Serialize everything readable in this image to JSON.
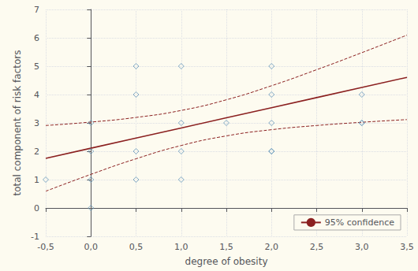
{
  "chart_data": {
    "type": "scatter",
    "xlabel": "degree of obesity",
    "ylabel": "total component of risk factors",
    "xlim": [
      -0.5,
      3.5
    ],
    "ylim": [
      -1,
      7
    ],
    "xticks": [
      {
        "value": -0.5,
        "label": "-0,5"
      },
      {
        "value": 0.0,
        "label": "0,0"
      },
      {
        "value": 0.5,
        "label": "0,5"
      },
      {
        "value": 1.0,
        "label": "1,0"
      },
      {
        "value": 1.5,
        "label": "1,5"
      },
      {
        "value": 2.0,
        "label": "2,0"
      },
      {
        "value": 2.5,
        "label": "2,5"
      },
      {
        "value": 3.0,
        "label": "3,0"
      },
      {
        "value": 3.5,
        "label": "3,5"
      }
    ],
    "yticks": [
      -1,
      0,
      1,
      2,
      3,
      4,
      5,
      6,
      7
    ],
    "grid": true,
    "legend": "lower right",
    "series": [
      {
        "type": "line",
        "color": "#8B2020",
        "line_style": "dashed",
        "x": [
          -0.5,
          0.0,
          0.5,
          1.0,
          1.5,
          2.0,
          2.5,
          3.0,
          3.5
        ],
        "values": [
          2.909,
          3.029,
          3.193,
          3.439,
          3.815,
          4.31,
          4.876,
          5.476,
          6.095
        ]
      },
      {
        "type": "line",
        "color": "#8B2020",
        "line_style": "dashed",
        "x": [
          -0.5,
          0.0,
          0.5,
          1.0,
          1.5,
          2.0,
          2.5,
          3.0,
          3.5
        ],
        "values": [
          0.591,
          1.185,
          1.735,
          2.203,
          2.541,
          2.76,
          2.908,
          3.022,
          3.117
        ]
      },
      {
        "name": "95% confidence",
        "type": "line",
        "color": "#8B2020",
        "line_style": "solid",
        "x": [
          -0.5,
          0.0,
          0.5,
          1.0,
          1.5,
          2.0,
          2.5,
          3.0,
          3.5
        ],
        "values": [
          1.75,
          2.107,
          2.464,
          2.821,
          3.178,
          3.535,
          3.892,
          4.249,
          4.606
        ]
      },
      {
        "type": "scatter",
        "color": "#6699bb",
        "marker": "diamond",
        "x": [
          -0.5,
          0.0,
          0.0,
          0.0,
          0.0,
          0.5,
          0.5,
          0.5,
          0.5,
          1.0,
          1.0,
          1.0,
          1.0,
          1.5,
          2.0,
          2.0,
          2.0,
          2.0,
          2.0,
          3.0,
          3.0,
          3.0
        ],
        "values": [
          1.0,
          0.0,
          1.0,
          2.0,
          3.0,
          4.0,
          2.0,
          1.0,
          5.0,
          3.0,
          2.0,
          1.0,
          5.0,
          3.0,
          2.0,
          3.0,
          4.0,
          5.0,
          2.0,
          3.0,
          4.0,
          3.0
        ]
      }
    ]
  }
}
